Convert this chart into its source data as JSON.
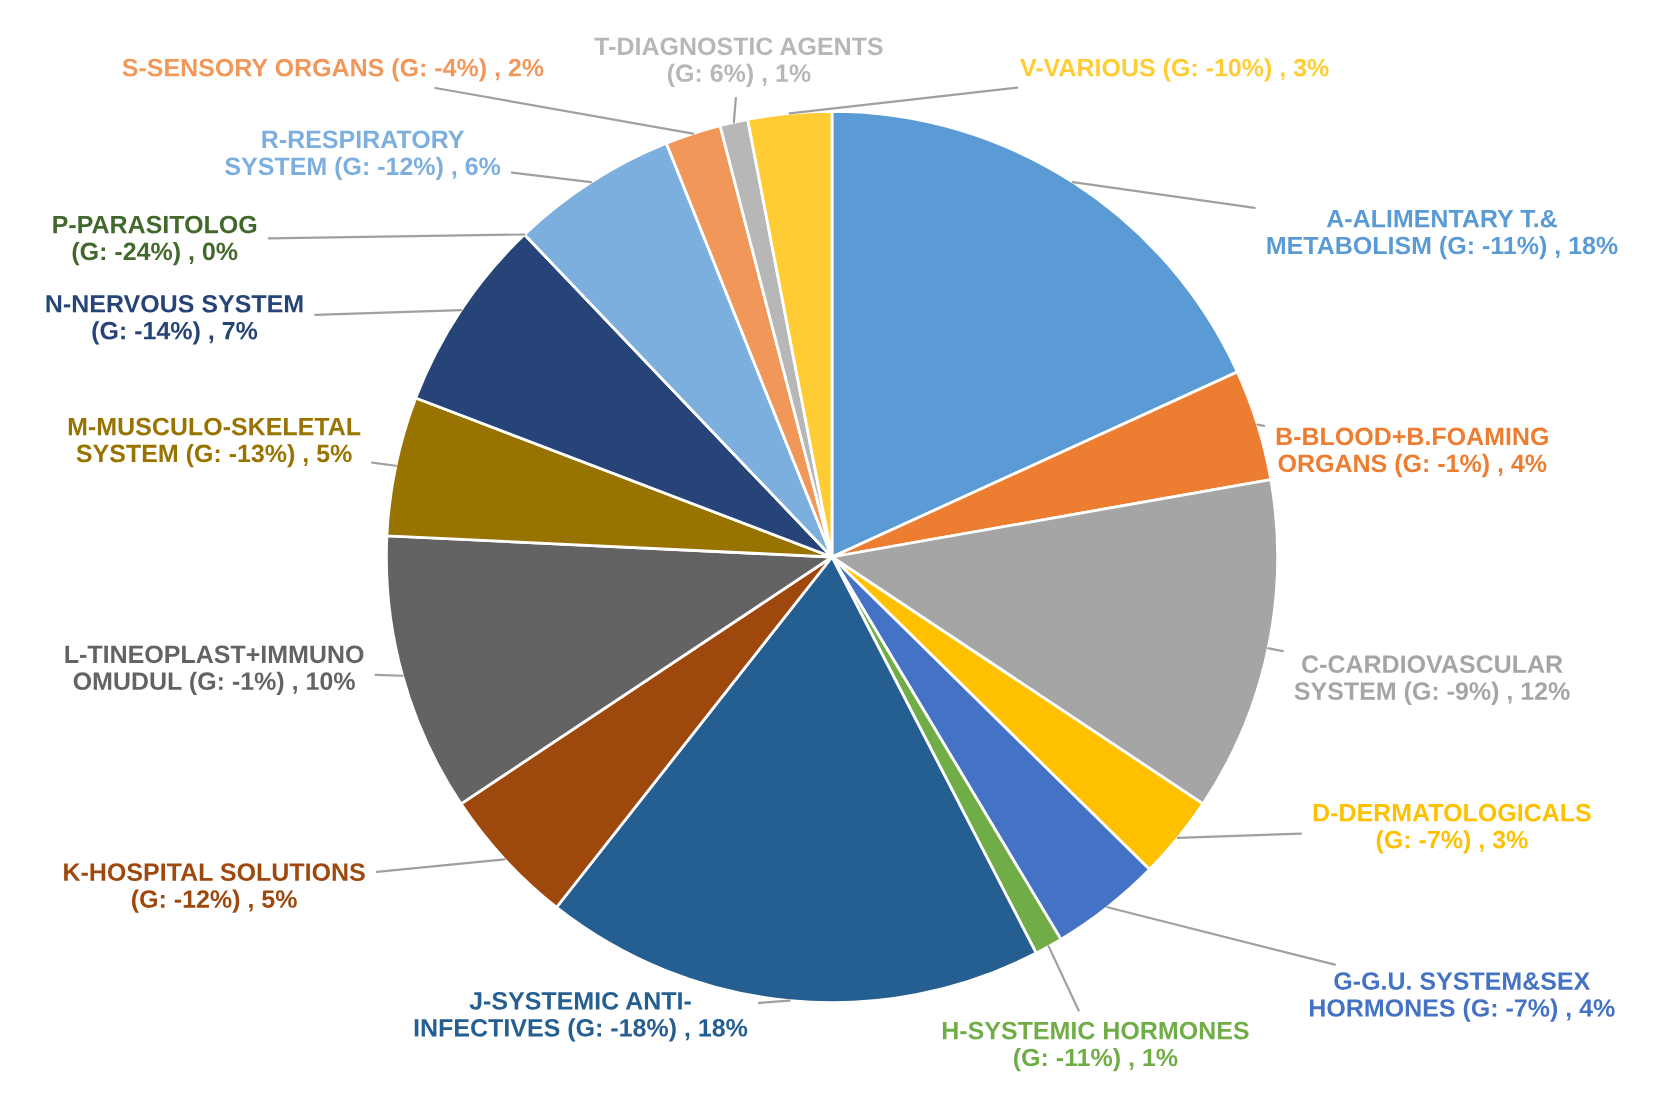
{
  "chart_data": {
    "type": "pie",
    "categories": [
      "A-ALIMENTARY T.&\nMETABOLISM (G: -11%)",
      "B-BLOOD+B.FOAMING\nORGANS (G: -1%)",
      "C-CARDIOVASCULAR\nSYSTEM (G: -9%)",
      "D-DERMATOLOGICALS\n(G: -7%)",
      "G-G.U. SYSTEM&SEX\nHORMONES (G: -7%)",
      "H-SYSTEMIC HORMONES\n(G: -11%)",
      "J-SYSTEMIC ANTI-\nINFECTIVES (G: -18%)",
      "K-HOSPITAL SOLUTIONS\n(G: -12%)",
      "L-TINEOPLAST+IMMUNO\nOMUDUL (G: -1%)",
      "M-MUSCULO-SKELETAL\nSYSTEM (G: -13%)",
      "N-NERVOUS SYSTEM\n(G: -14%)",
      "P-PARASITOLOG\n(G: -24%)",
      "R-RESPIRATORY\nSYSTEM (G: -12%)",
      "S-SENSORY ORGANS (G: -4%)",
      "T-DIAGNOSTIC AGENTS\n(G: 6%)",
      "V-VARIOUS (G: -10%)"
    ],
    "values": [
      18,
      4,
      12,
      3,
      4,
      1,
      18,
      5,
      10,
      5,
      7,
      0,
      6,
      2,
      1,
      3
    ],
    "value_labels": [
      ", 18%",
      ", 4%",
      ", 12%",
      ", 3%",
      ", 4%",
      ", 1%",
      ", 18%",
      ", 5%",
      ", 10%",
      ", 5%",
      ", 7%",
      ", 0%",
      ", 6%",
      ", 2%",
      ", 1%",
      ", 3%"
    ],
    "colors": [
      "#5b9bd5",
      "#ed7d31",
      "#a5a5a5",
      "#ffc000",
      "#4472c4",
      "#70ad47",
      "#255e91",
      "#9e480e",
      "#636363",
      "#997300",
      "#264478",
      "#43682b",
      "#7cafdd",
      "#f1975a",
      "#b7b7b7",
      "#ffcd33"
    ],
    "legend": false
  }
}
